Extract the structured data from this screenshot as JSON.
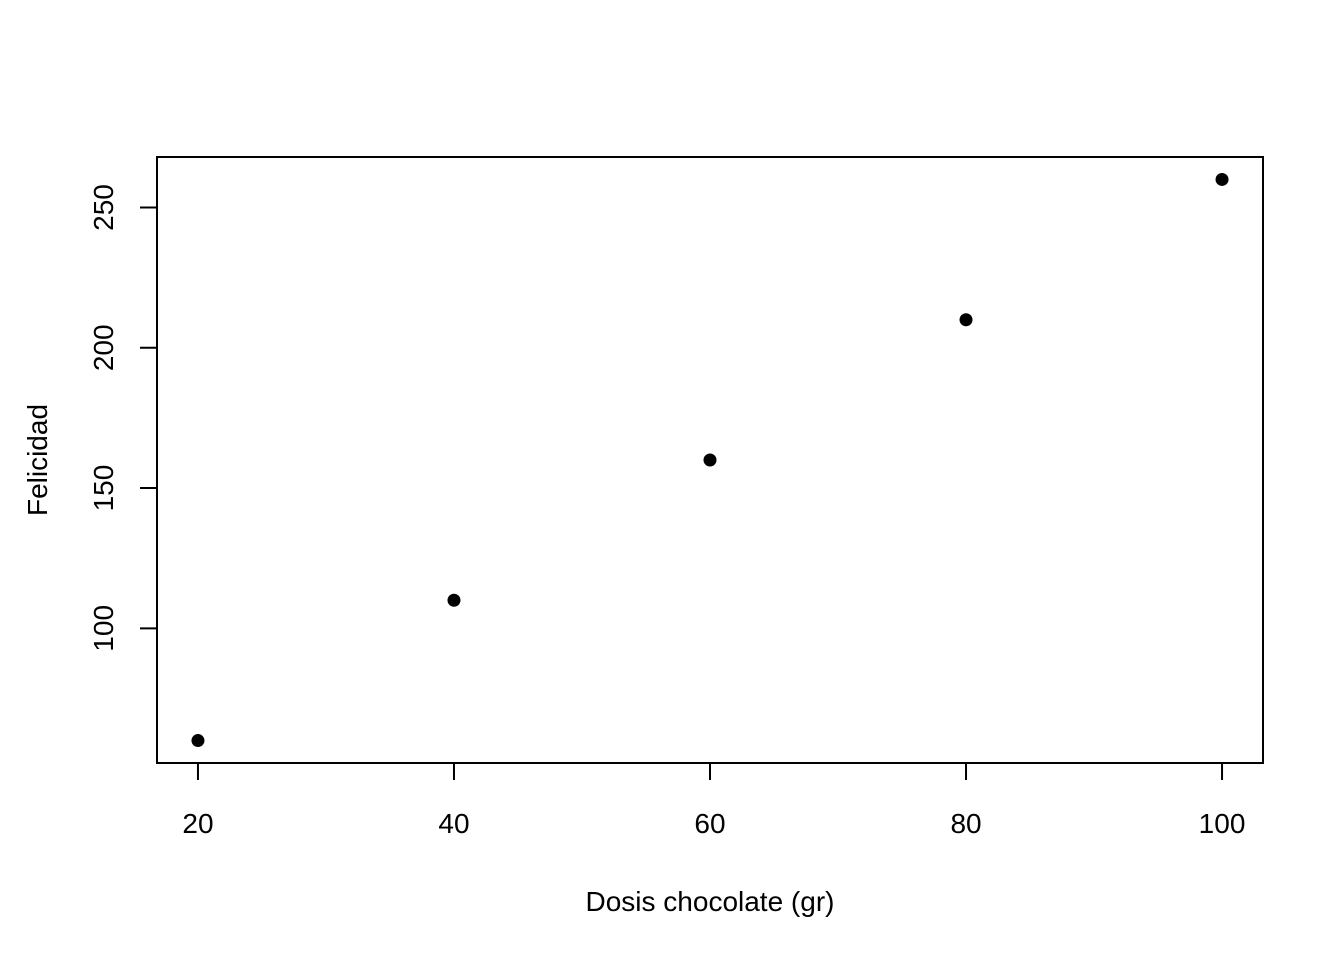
{
  "chart_data": {
    "type": "scatter",
    "title": "",
    "xlabel": "Dosis chocolate (gr)",
    "ylabel": "Felicidad",
    "x": [
      20,
      40,
      60,
      80,
      100
    ],
    "y": [
      60,
      110,
      160,
      210,
      260
    ],
    "xlim": [
      16.8,
      103.2
    ],
    "ylim": [
      52,
      268
    ],
    "xticks": [
      20,
      40,
      60,
      80,
      100
    ],
    "yticks": [
      100,
      150,
      200,
      250
    ],
    "grid": false,
    "legend": "none",
    "point_color": "#000000"
  }
}
